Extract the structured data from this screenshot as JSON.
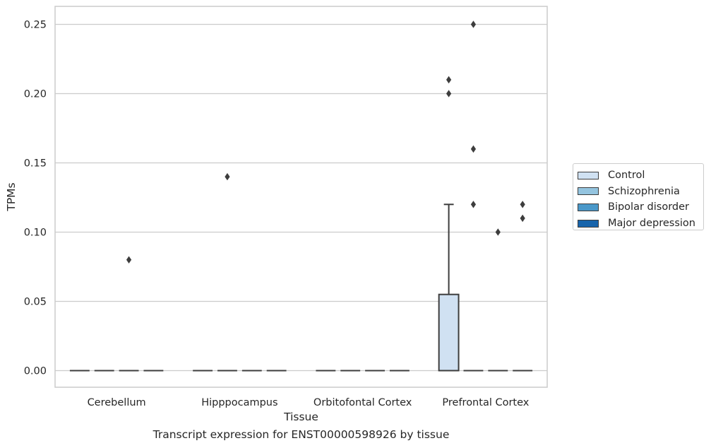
{
  "chart_data": {
    "type": "box",
    "title": "",
    "caption": "Transcript expression for ENST00000598926 by tissue",
    "xlabel": "Tissue",
    "ylabel": "TPMs",
    "ylim": [
      -0.012,
      0.263
    ],
    "yticks": [
      0.0,
      0.05,
      0.1,
      0.15,
      0.2,
      0.25
    ],
    "ytick_labels": [
      "0.00",
      "0.05",
      "0.10",
      "0.15",
      "0.20",
      "0.25"
    ],
    "grid": "horizontal",
    "legend_position": "right",
    "categories": [
      "Cerebellum",
      "Hipppocampus",
      "Orbitofontal Cortex",
      "Prefrontal Cortex"
    ],
    "series": [
      {
        "name": "Control",
        "color": "#d0e1f2",
        "boxes": [
          {
            "category": "Cerebellum",
            "q1": 0,
            "median": 0,
            "q3": 0,
            "whisker_low": 0,
            "whisker_high": 0,
            "outliers": []
          },
          {
            "category": "Hipppocampus",
            "q1": 0,
            "median": 0,
            "q3": 0,
            "whisker_low": 0,
            "whisker_high": 0,
            "outliers": []
          },
          {
            "category": "Orbitofontal Cortex",
            "q1": 0,
            "median": 0,
            "q3": 0,
            "whisker_low": 0,
            "whisker_high": 0,
            "outliers": []
          },
          {
            "category": "Prefrontal Cortex",
            "q1": 0,
            "median": 0,
            "q3": 0.055,
            "whisker_low": 0,
            "whisker_high": 0.12,
            "outliers": [
              0.21,
              0.2
            ]
          }
        ]
      },
      {
        "name": "Schizophrenia",
        "color": "#94c4df",
        "boxes": [
          {
            "category": "Cerebellum",
            "q1": 0,
            "median": 0,
            "q3": 0,
            "whisker_low": 0,
            "whisker_high": 0,
            "outliers": []
          },
          {
            "category": "Hipppocampus",
            "q1": 0,
            "median": 0,
            "q3": 0,
            "whisker_low": 0,
            "whisker_high": 0,
            "outliers": [
              0.14
            ]
          },
          {
            "category": "Orbitofontal Cortex",
            "q1": 0,
            "median": 0,
            "q3": 0,
            "whisker_low": 0,
            "whisker_high": 0,
            "outliers": []
          },
          {
            "category": "Prefrontal Cortex",
            "q1": 0,
            "median": 0,
            "q3": 0,
            "whisker_low": 0,
            "whisker_high": 0,
            "outliers": [
              0.25,
              0.16,
              0.12
            ]
          }
        ]
      },
      {
        "name": "Bipolar disorder",
        "color": "#4a98c9",
        "boxes": [
          {
            "category": "Cerebellum",
            "q1": 0,
            "median": 0,
            "q3": 0,
            "whisker_low": 0,
            "whisker_high": 0,
            "outliers": [
              0.08
            ]
          },
          {
            "category": "Hipppocampus",
            "q1": 0,
            "median": 0,
            "q3": 0,
            "whisker_low": 0,
            "whisker_high": 0,
            "outliers": []
          },
          {
            "category": "Orbitofontal Cortex",
            "q1": 0,
            "median": 0,
            "q3": 0,
            "whisker_low": 0,
            "whisker_high": 0,
            "outliers": []
          },
          {
            "category": "Prefrontal Cortex",
            "q1": 0,
            "median": 0,
            "q3": 0,
            "whisker_low": 0,
            "whisker_high": 0,
            "outliers": [
              0.1
            ]
          }
        ]
      },
      {
        "name": "Major depression",
        "color": "#1764ab",
        "boxes": [
          {
            "category": "Cerebellum",
            "q1": 0,
            "median": 0,
            "q3": 0,
            "whisker_low": 0,
            "whisker_high": 0,
            "outliers": []
          },
          {
            "category": "Hipppocampus",
            "q1": 0,
            "median": 0,
            "q3": 0,
            "whisker_low": 0,
            "whisker_high": 0,
            "outliers": []
          },
          {
            "category": "Orbitofontal Cortex",
            "q1": 0,
            "median": 0,
            "q3": 0,
            "whisker_low": 0,
            "whisker_high": 0,
            "outliers": []
          },
          {
            "category": "Prefrontal Cortex",
            "q1": 0,
            "median": 0,
            "q3": 0,
            "whisker_low": 0,
            "whisker_high": 0,
            "outliers": [
              0.12,
              0.11
            ]
          }
        ]
      }
    ]
  }
}
